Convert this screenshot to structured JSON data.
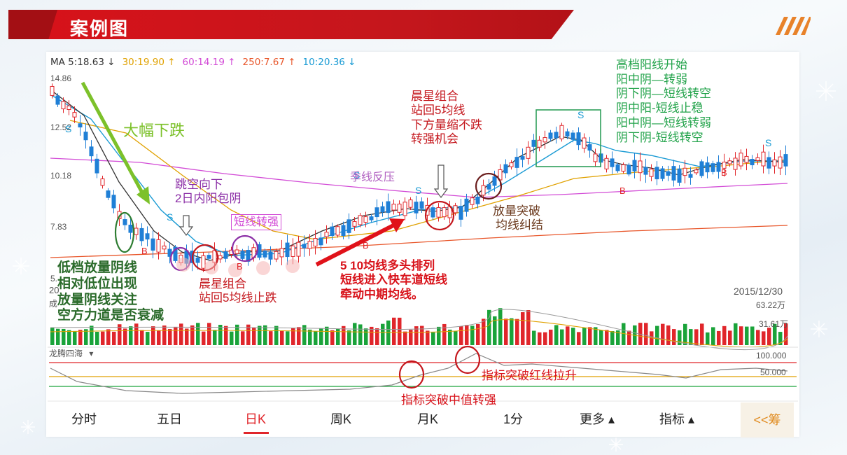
{
  "header": {
    "title": "案例图"
  },
  "ma_legend": [
    {
      "text": "MA 5:18.63",
      "arrow": "↓",
      "color": "#333333"
    },
    {
      "text": "30:19.90",
      "arrow": "↑",
      "color": "#e0a100"
    },
    {
      "text": "60:14.19",
      "arrow": "↑",
      "color": "#d24bd6"
    },
    {
      "text": "250:7.67",
      "arrow": "↑",
      "color": "#e8562a"
    },
    {
      "text": "10:20.36",
      "arrow": "↓",
      "color": "#1a9bd4"
    }
  ],
  "price_axis": {
    "top": "14.86",
    "p12": "12.52",
    "p10": "10.18",
    "p7": "7.83",
    "p5": "5."
  },
  "date_left": "20",
  "date_right": "2015/12/30",
  "volume_axis": {
    "label": "成",
    "top": "63.22万",
    "mid": "31.61万"
  },
  "indicator": {
    "name": "龙腾四海",
    "menu_arrow": "▾",
    "v100": "100.000",
    "v50": "50.000"
  },
  "markers": {
    "s": "S",
    "b": "B"
  },
  "annotations": {
    "big_drop": "大幅下跌",
    "gap_down": [
      "跳空向下",
      "2日内阳包阴"
    ],
    "short_strong": "短线转强",
    "season_resist": "季线反压",
    "morning_star_top": [
      "晨星组合",
      "站回5均线",
      "下方量缩不跌",
      "转强机会"
    ],
    "volume_break": [
      "放量突破",
      "均线纠结"
    ],
    "right_notes": [
      "高档阳线开始",
      "阳中阴—转弱",
      "阴下阴—短线转空",
      "阴中阳-短线止稳",
      "阳中阴—短线转弱",
      "阴下阴-短线转空"
    ],
    "low_vol": [
      "低档放量阴线",
      "相对低位出现",
      "放量阴线关注",
      "空方力道是否衰减"
    ],
    "morning_star_low": [
      "晨星组合",
      "站回5均线止跌"
    ],
    "bull_align": [
      "5 10均线多头排列",
      "短线进入快车道短线",
      "牵动中期均线。"
    ],
    "ind_red": "指标突破红线拉升",
    "ind_mid": "指标突破中值转强"
  },
  "tabs": [
    "分时",
    "五日",
    "日K",
    "周K",
    "月K",
    "1分",
    "更多 ▴",
    "指标 ▴"
  ],
  "active_tab": "日K",
  "chip": "<<筹",
  "colors": {
    "up": "#e0262b",
    "down": "#1f7fd6",
    "vol_up": "#e0262b",
    "vol_down": "#1aa33a",
    "ma5": "#333333",
    "ma10": "#1a9bd4",
    "ma30": "#e0a100",
    "ma60": "#d24bd6",
    "ma250": "#e8562a"
  }
}
